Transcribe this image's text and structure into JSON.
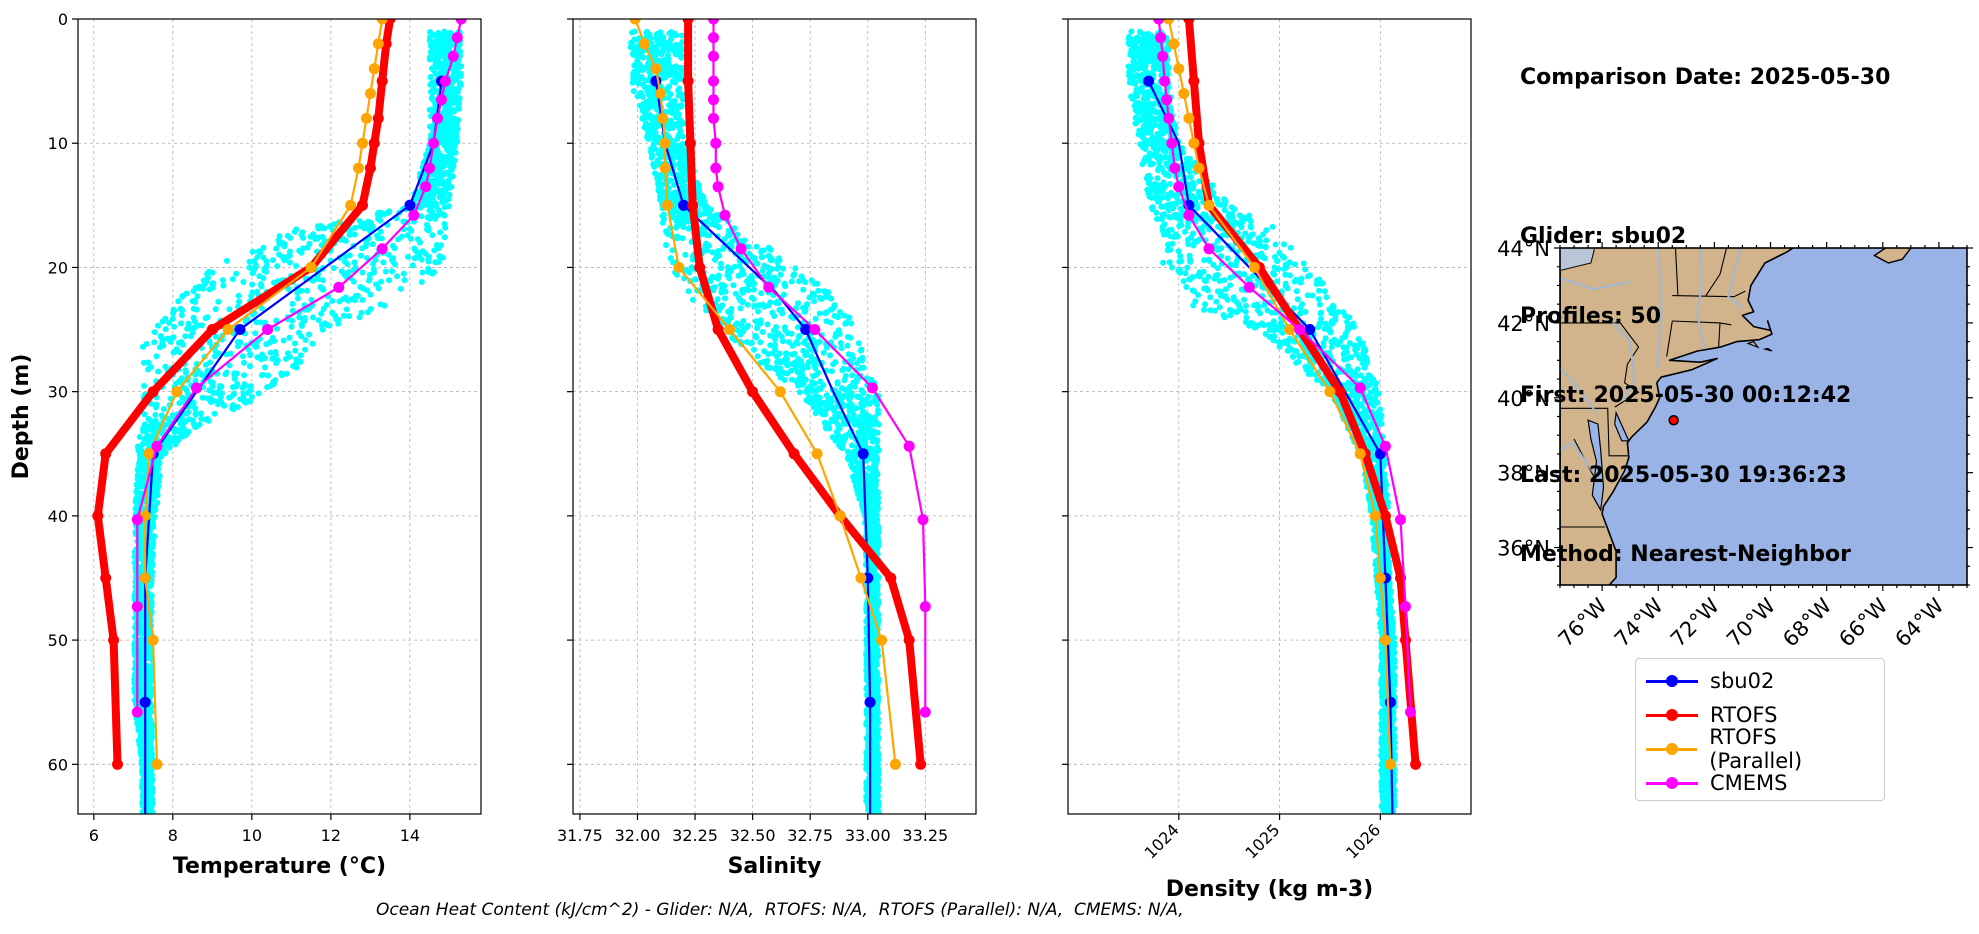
{
  "info": {
    "comparison_date": "Comparison Date: 2025-05-30",
    "glider": "Glider: sbu02",
    "profiles": "Profiles: 50",
    "first": "First: 2025-05-30 00:12:42",
    "last": "Last: 2025-05-30 19:36:23",
    "method": "Method: Nearest-Neighbor"
  },
  "footer": "Ocean Heat Content (kJ/cm^2) - Glider: N/A,  RTOFS: N/A,  RTOFS (Parallel): N/A,  CMEMS: N/A,",
  "legend": [
    {
      "label": "sbu02",
      "color": "#0000ff"
    },
    {
      "label": "RTOFS",
      "color": "#ff0000"
    },
    {
      "label": "RTOFS (Parallel)",
      "color": "#ffa500"
    },
    {
      "label": "CMEMS",
      "color": "#ff00ff"
    }
  ],
  "colors": {
    "glider_scatter": "#00ffff",
    "land": "#d2b48c",
    "ocean": "#99b3e6",
    "grid": "#b0b0b0"
  },
  "chart_data": [
    {
      "type": "line",
      "xlabel": "Temperature (°C)",
      "ylabel": "Depth (m)",
      "xlim": [
        5.6,
        15.8
      ],
      "ylim": [
        64,
        0
      ],
      "xticks": [
        6,
        8,
        10,
        12,
        14
      ],
      "yticks": [
        0,
        10,
        20,
        30,
        40,
        50,
        60
      ],
      "grid": true,
      "scatter_band": {
        "name": "sbu02 (all profiles)",
        "color": "#00ffff",
        "depth": [
          1,
          5,
          10,
          15,
          17,
          20,
          23,
          25,
          27,
          30,
          33,
          35,
          40,
          45,
          50,
          55,
          60,
          64
        ],
        "min": [
          14.5,
          14.5,
          14.5,
          14,
          11,
          9,
          8,
          7.3,
          7.2,
          7.2,
          7.1,
          7.1,
          7.0,
          7.0,
          7.0,
          7.0,
          7.2,
          7.2
        ],
        "max": [
          15.3,
          15.3,
          15.2,
          15,
          14.9,
          14.9,
          13.5,
          12,
          11.5,
          10.5,
          8.5,
          7.8,
          7.6,
          7.5,
          7.5,
          7.5,
          7.5,
          7.5
        ]
      },
      "series": [
        {
          "name": "sbu02",
          "color": "#0000ff",
          "points": [
            [
              14.8,
              5
            ],
            [
              14.6,
              10
            ],
            [
              14,
              15
            ],
            [
              9.7,
              25
            ],
            [
              7.5,
              35
            ],
            [
              7.3,
              45
            ],
            [
              7.3,
              55
            ],
            [
              7.3,
              64
            ]
          ],
          "markers": [
            [
              14.8,
              5
            ],
            [
              14.0,
              15
            ],
            [
              9.7,
              25
            ],
            [
              7.5,
              35
            ],
            [
              7.3,
              45
            ],
            [
              7.3,
              55
            ]
          ]
        },
        {
          "name": "RTOFS",
          "color": "#ff0000",
          "points": [
            [
              13.5,
              0
            ],
            [
              13.4,
              2
            ],
            [
              13.3,
              5
            ],
            [
              13.2,
              8
            ],
            [
              13.1,
              10
            ],
            [
              13.0,
              12
            ],
            [
              12.8,
              15
            ],
            [
              11.5,
              20
            ],
            [
              9.0,
              25
            ],
            [
              7.5,
              30
            ],
            [
              6.3,
              35
            ],
            [
              6.1,
              40
            ],
            [
              6.3,
              45
            ],
            [
              6.5,
              50
            ],
            [
              6.6,
              60
            ]
          ]
        },
        {
          "name": "RTOFS (Parallel)",
          "color": "#ffa500",
          "points": [
            [
              13.3,
              0
            ],
            [
              13.2,
              2
            ],
            [
              13.1,
              4
            ],
            [
              13.0,
              6
            ],
            [
              12.9,
              8
            ],
            [
              12.8,
              10
            ],
            [
              12.7,
              12
            ],
            [
              12.5,
              15
            ],
            [
              11.5,
              20
            ],
            [
              9.4,
              25
            ],
            [
              8.1,
              30
            ],
            [
              7.4,
              35
            ],
            [
              7.3,
              40
            ],
            [
              7.3,
              45
            ],
            [
              7.5,
              50
            ],
            [
              7.6,
              60
            ]
          ]
        },
        {
          "name": "CMEMS",
          "color": "#ff00ff",
          "points": [
            [
              15.3,
              0
            ],
            [
              15.2,
              1.5
            ],
            [
              15.1,
              3
            ],
            [
              14.9,
              5
            ],
            [
              14.8,
              6.5
            ],
            [
              14.7,
              8
            ],
            [
              14.6,
              10
            ],
            [
              14.5,
              12
            ],
            [
              14.4,
              13.5
            ],
            [
              14.1,
              15.8
            ],
            [
              13.3,
              18.5
            ],
            [
              12.2,
              21.6
            ],
            [
              10.4,
              25
            ],
            [
              8.6,
              29.7
            ],
            [
              7.6,
              34.4
            ],
            [
              7.1,
              40.3
            ],
            [
              7.1,
              47.3
            ],
            [
              7.1,
              55.8
            ]
          ]
        }
      ]
    },
    {
      "type": "line",
      "xlabel": "Salinity",
      "xlim": [
        31.72,
        33.47
      ],
      "ylim": [
        64,
        0
      ],
      "xticks": [
        31.75,
        32.0,
        32.25,
        32.5,
        32.75,
        33.0,
        33.25
      ],
      "xtick_labels": [
        "31.75",
        "32.00",
        "32.25",
        "32.50",
        "32.75",
        "33.00",
        "33.25"
      ],
      "yticks": [
        0,
        10,
        20,
        30,
        40,
        50,
        60
      ],
      "grid": true,
      "scatter_band": {
        "name": "sbu02 (all profiles)",
        "color": "#00ffff",
        "depth": [
          1,
          5,
          10,
          15,
          18,
          20,
          23,
          25,
          28,
          30,
          35,
          40,
          45,
          50,
          55,
          60,
          64
        ],
        "min": [
          31.97,
          31.97,
          32.05,
          32.1,
          32.12,
          32.15,
          32.25,
          32.35,
          32.55,
          32.7,
          32.9,
          32.98,
          32.99,
          32.99,
          32.99,
          32.99,
          32.99
        ],
        "max": [
          32.2,
          32.2,
          32.2,
          32.3,
          32.55,
          32.7,
          32.9,
          32.95,
          33.0,
          33.05,
          33.05,
          33.05,
          33.05,
          33.05,
          33.05,
          33.05,
          33.05
        ]
      },
      "series": [
        {
          "name": "sbu02",
          "color": "#0000ff",
          "points": [
            [
              32.08,
              5
            ],
            [
              32.12,
              10
            ],
            [
              32.2,
              15
            ],
            [
              32.6,
              22
            ],
            [
              32.73,
              25
            ],
            [
              32.85,
              30
            ],
            [
              32.98,
              35
            ],
            [
              33.0,
              45
            ],
            [
              33.01,
              55
            ],
            [
              33.01,
              64
            ]
          ],
          "markers": [
            [
              32.08,
              5
            ],
            [
              32.2,
              15
            ],
            [
              32.73,
              25
            ],
            [
              32.98,
              35
            ],
            [
              33.0,
              45
            ],
            [
              33.01,
              55
            ]
          ]
        },
        {
          "name": "RTOFS",
          "color": "#ff0000",
          "points": [
            [
              32.22,
              0
            ],
            [
              32.22,
              5
            ],
            [
              32.23,
              10
            ],
            [
              32.24,
              15
            ],
            [
              32.27,
              20
            ],
            [
              32.35,
              25
            ],
            [
              32.5,
              30
            ],
            [
              32.68,
              35
            ],
            [
              32.88,
              40
            ],
            [
              33.1,
              45
            ],
            [
              33.18,
              50
            ],
            [
              33.23,
              60
            ]
          ]
        },
        {
          "name": "RTOFS (Parallel)",
          "color": "#ffa500",
          "points": [
            [
              31.99,
              0
            ],
            [
              32.03,
              2
            ],
            [
              32.08,
              4
            ],
            [
              32.1,
              6
            ],
            [
              32.11,
              8
            ],
            [
              32.12,
              10
            ],
            [
              32.12,
              12
            ],
            [
              32.13,
              15
            ],
            [
              32.18,
              20
            ],
            [
              32.4,
              25
            ],
            [
              32.62,
              30
            ],
            [
              32.78,
              35
            ],
            [
              32.88,
              40
            ],
            [
              32.97,
              45
            ],
            [
              33.06,
              50
            ],
            [
              33.12,
              60
            ]
          ]
        },
        {
          "name": "CMEMS",
          "color": "#ff00ff",
          "points": [
            [
              32.33,
              0
            ],
            [
              32.33,
              1.5
            ],
            [
              32.33,
              3
            ],
            [
              32.33,
              5
            ],
            [
              32.33,
              6.5
            ],
            [
              32.33,
              8
            ],
            [
              32.34,
              10
            ],
            [
              32.34,
              12
            ],
            [
              32.35,
              13.5
            ],
            [
              32.38,
              15.8
            ],
            [
              32.45,
              18.5
            ],
            [
              32.57,
              21.6
            ],
            [
              32.77,
              25
            ],
            [
              33.02,
              29.7
            ],
            [
              33.18,
              34.4
            ],
            [
              33.24,
              40.3
            ],
            [
              33.25,
              47.3
            ],
            [
              33.25,
              55.8
            ]
          ]
        }
      ]
    },
    {
      "type": "line",
      "xlabel": "Density (kg m-3)",
      "xlim": [
        1022.9,
        1026.9
      ],
      "ylim": [
        64,
        0
      ],
      "xticks": [
        1024,
        1025,
        1026
      ],
      "yticks": [
        0,
        10,
        20,
        30,
        40,
        50,
        60
      ],
      "grid": true,
      "scatter_band": {
        "name": "sbu02 (all profiles)",
        "color": "#00ffff",
        "depth": [
          1,
          5,
          10,
          15,
          17,
          20,
          23,
          25,
          28,
          30,
          35,
          40,
          45,
          50,
          55,
          60,
          64
        ],
        "min": [
          1023.5,
          1023.5,
          1023.6,
          1023.7,
          1023.8,
          1023.85,
          1024.1,
          1024.8,
          1025.2,
          1025.5,
          1025.8,
          1025.9,
          1025.95,
          1026.0,
          1026.0,
          1026.0,
          1026.0
        ],
        "max": [
          1023.9,
          1023.9,
          1024.0,
          1024.5,
          1025.0,
          1025.3,
          1025.6,
          1025.8,
          1025.9,
          1026.0,
          1026.05,
          1026.1,
          1026.1,
          1026.15,
          1026.15,
          1026.15,
          1026.15
        ]
      },
      "series": [
        {
          "name": "sbu02",
          "color": "#0000ff",
          "points": [
            [
              1023.7,
              5
            ],
            [
              1024.0,
              10
            ],
            [
              1024.1,
              15
            ],
            [
              1025.3,
              25
            ],
            [
              1026.0,
              35
            ],
            [
              1026.05,
              45
            ],
            [
              1026.1,
              55
            ],
            [
              1026.12,
              64
            ]
          ],
          "markers": [
            [
              1023.7,
              5
            ],
            [
              1024.1,
              15
            ],
            [
              1025.3,
              25
            ],
            [
              1026.0,
              35
            ],
            [
              1026.05,
              45
            ],
            [
              1026.1,
              55
            ]
          ]
        },
        {
          "name": "RTOFS",
          "color": "#ff0000",
          "points": [
            [
              1024.1,
              0
            ],
            [
              1024.15,
              5
            ],
            [
              1024.2,
              10
            ],
            [
              1024.3,
              15
            ],
            [
              1024.8,
              20
            ],
            [
              1025.2,
              25
            ],
            [
              1025.6,
              30
            ],
            [
              1025.85,
              35
            ],
            [
              1026.05,
              40
            ],
            [
              1026.2,
              45
            ],
            [
              1026.25,
              50
            ],
            [
              1026.35,
              60
            ]
          ]
        },
        {
          "name": "RTOFS (Parallel)",
          "color": "#ffa500",
          "points": [
            [
              1023.9,
              0
            ],
            [
              1023.95,
              2
            ],
            [
              1024.0,
              4
            ],
            [
              1024.05,
              6
            ],
            [
              1024.1,
              8
            ],
            [
              1024.15,
              10
            ],
            [
              1024.2,
              12
            ],
            [
              1024.3,
              15
            ],
            [
              1024.75,
              20
            ],
            [
              1025.1,
              25
            ],
            [
              1025.5,
              30
            ],
            [
              1025.8,
              35
            ],
            [
              1025.95,
              40
            ],
            [
              1026.0,
              45
            ],
            [
              1026.05,
              50
            ],
            [
              1026.1,
              60
            ]
          ]
        },
        {
          "name": "CMEMS",
          "color": "#ff00ff",
          "points": [
            [
              1023.8,
              0
            ],
            [
              1023.82,
              1.5
            ],
            [
              1023.84,
              3
            ],
            [
              1023.86,
              5
            ],
            [
              1023.88,
              6.5
            ],
            [
              1023.9,
              8
            ],
            [
              1023.93,
              10
            ],
            [
              1023.96,
              12
            ],
            [
              1024.0,
              13.5
            ],
            [
              1024.1,
              15.8
            ],
            [
              1024.3,
              18.5
            ],
            [
              1024.7,
              21.6
            ],
            [
              1025.2,
              25
            ],
            [
              1025.8,
              29.7
            ],
            [
              1026.05,
              34.4
            ],
            [
              1026.2,
              40.3
            ],
            [
              1026.25,
              47.3
            ],
            [
              1026.3,
              55.8
            ]
          ]
        }
      ]
    },
    {
      "type": "map",
      "lon_range": [
        -77.5,
        -63
      ],
      "lat_range": [
        35,
        44
      ],
      "xticks": [
        -76,
        -74,
        -72,
        -70,
        -68,
        -66,
        -64
      ],
      "xtick_labels": [
        "76°W",
        "74°W",
        "72°W",
        "70°W",
        "68°W",
        "66°W",
        "64°W"
      ],
      "yticks": [
        36,
        38,
        40,
        42,
        44
      ],
      "ytick_labels": [
        "36°N",
        "38°N",
        "40°N",
        "42°N",
        "44°N"
      ],
      "glider_position": {
        "lon": -73.45,
        "lat": 39.4
      }
    }
  ]
}
